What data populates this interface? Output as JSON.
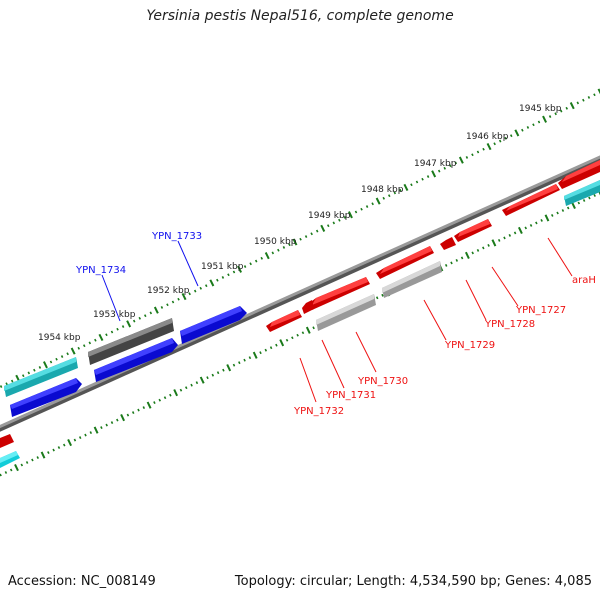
{
  "title": "Yersinia pestis Nepal516, complete genome",
  "footer": {
    "accession": "Accession: NC_008149",
    "summary": "Topology: circular; Length: 4,534,590 bp; Genes: 4,085"
  },
  "tick_labels": [
    "1945 kbp",
    "1946 kbp",
    "1947 kbp",
    "1948 kbp",
    "1949 kbp",
    "1950 kbp",
    "1951 kbp",
    "1952 kbp",
    "1953 kbp",
    "1954 kbp"
  ],
  "genes_outer": [
    {
      "label": "YPN_1733",
      "color": "#1010ee"
    },
    {
      "label": "YPN_1734",
      "color": "#1010ee"
    }
  ],
  "genes_inner": [
    {
      "label": "araH",
      "color": "#ee1111"
    },
    {
      "label": "YPN_1727",
      "color": "#ee1111"
    },
    {
      "label": "YPN_1728",
      "color": "#ee1111"
    },
    {
      "label": "YPN_1729",
      "color": "#ee1111"
    },
    {
      "label": "YPN_1730",
      "color": "#ee1111"
    },
    {
      "label": "YPN_1731",
      "color": "#ee1111"
    },
    {
      "label": "YPN_1732",
      "color": "#ee1111"
    }
  ],
  "colors": {
    "forward_cds": "#1010ee",
    "reverse_cds": "#ee1111",
    "rna_forward": "#22c8cc",
    "rna_reverse": "#22e4ee",
    "pseudo_forward": "#555555",
    "pseudo_reverse": "#b0b0b0",
    "backbone": "#808080",
    "ticks": "#1a7a1a"
  }
}
